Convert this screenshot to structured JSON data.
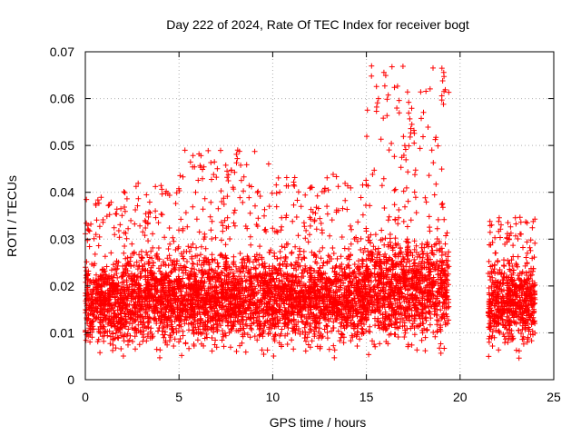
{
  "chart_data": {
    "type": "scatter",
    "title": "Day 222 of 2024, Rate Of TEC Index for receiver bogt",
    "xlabel": "GPS time / hours",
    "ylabel": "ROTI / TECUs",
    "xlim": [
      0,
      25
    ],
    "ylim": [
      0,
      0.07
    ],
    "x_ticks": [
      0,
      5,
      10,
      15,
      20,
      25
    ],
    "x_tick_labels": [
      "0",
      "5",
      "10",
      "15",
      "20",
      "25"
    ],
    "y_ticks": [
      0,
      0.01,
      0.02,
      0.03,
      0.04,
      0.05,
      0.06,
      0.07
    ],
    "y_tick_labels": [
      "0",
      "0.01",
      "0.02",
      "0.03",
      "0.04",
      "0.05",
      "0.06",
      "0.07"
    ],
    "grid": true,
    "legend": "none",
    "marker": "+",
    "marker_color": "#ff0000",
    "data_gap_hours": [
      19.4,
      21.5
    ],
    "segments": [
      {
        "x_range": [
          0.0,
          2.0
        ],
        "y_typical": [
          0.004,
          0.028
        ],
        "y_max": 0.039
      },
      {
        "x_range": [
          2.0,
          5.0
        ],
        "y_typical": [
          0.004,
          0.03
        ],
        "y_max": 0.042
      },
      {
        "x_range": [
          5.0,
          10.0
        ],
        "y_typical": [
          0.004,
          0.03
        ],
        "y_max": 0.049
      },
      {
        "x_range": [
          10.0,
          15.0
        ],
        "y_typical": [
          0.004,
          0.03
        ],
        "y_max": 0.044
      },
      {
        "x_range": [
          15.0,
          19.4
        ],
        "y_typical": [
          0.004,
          0.034
        ],
        "y_max": 0.067
      },
      {
        "x_range": [
          21.5,
          24.0
        ],
        "y_typical": [
          0.004,
          0.028
        ],
        "y_max": 0.035
      }
    ],
    "peaks": [
      {
        "x": 8.1,
        "y": 0.049
      },
      {
        "x": 15.6,
        "y": 0.06
      },
      {
        "x": 17.4,
        "y": 0.0545
      },
      {
        "x": 19.1,
        "y": 0.0665
      },
      {
        "x": 19.1,
        "y": 0.0615
      }
    ]
  }
}
